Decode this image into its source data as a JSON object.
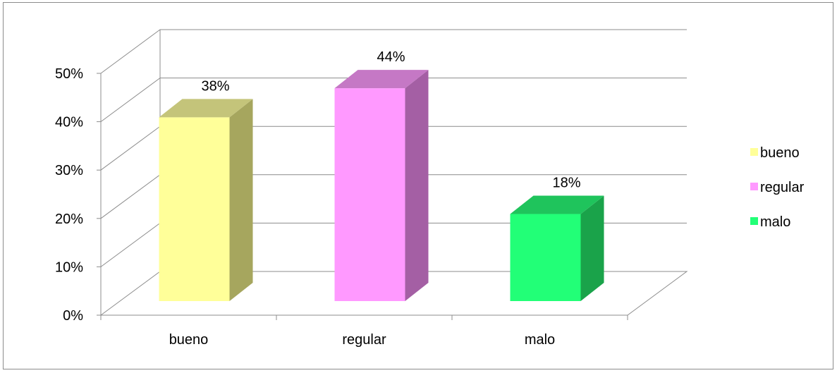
{
  "chart_data": {
    "type": "bar",
    "title": "",
    "xlabel": "",
    "ylabel": "",
    "categories": [
      "bueno",
      "regular",
      "malo"
    ],
    "values": [
      38,
      44,
      18
    ],
    "value_labels": [
      "38%",
      "44%",
      "18%"
    ],
    "ylim": [
      0,
      50
    ],
    "yticks": [
      0,
      10,
      20,
      30,
      40,
      50
    ],
    "ytick_labels": [
      "0%",
      "10%",
      "20%",
      "30%",
      "40%",
      "50%"
    ],
    "grid": true,
    "three_d": true,
    "legend": {
      "position": "right",
      "entries": [
        "bueno",
        "regular",
        "malo"
      ]
    },
    "colors": {
      "bueno": {
        "front": "#FFFF99",
        "side": "#A6A65E",
        "top": "#C4C47A"
      },
      "regular": {
        "front": "#FF99FF",
        "side": "#A45FA4",
        "top": "#C578C5"
      },
      "malo": {
        "front": "#22FF77",
        "side": "#1AA34A",
        "top": "#1FC45C"
      }
    },
    "grid_color": "#8c8c8c"
  }
}
